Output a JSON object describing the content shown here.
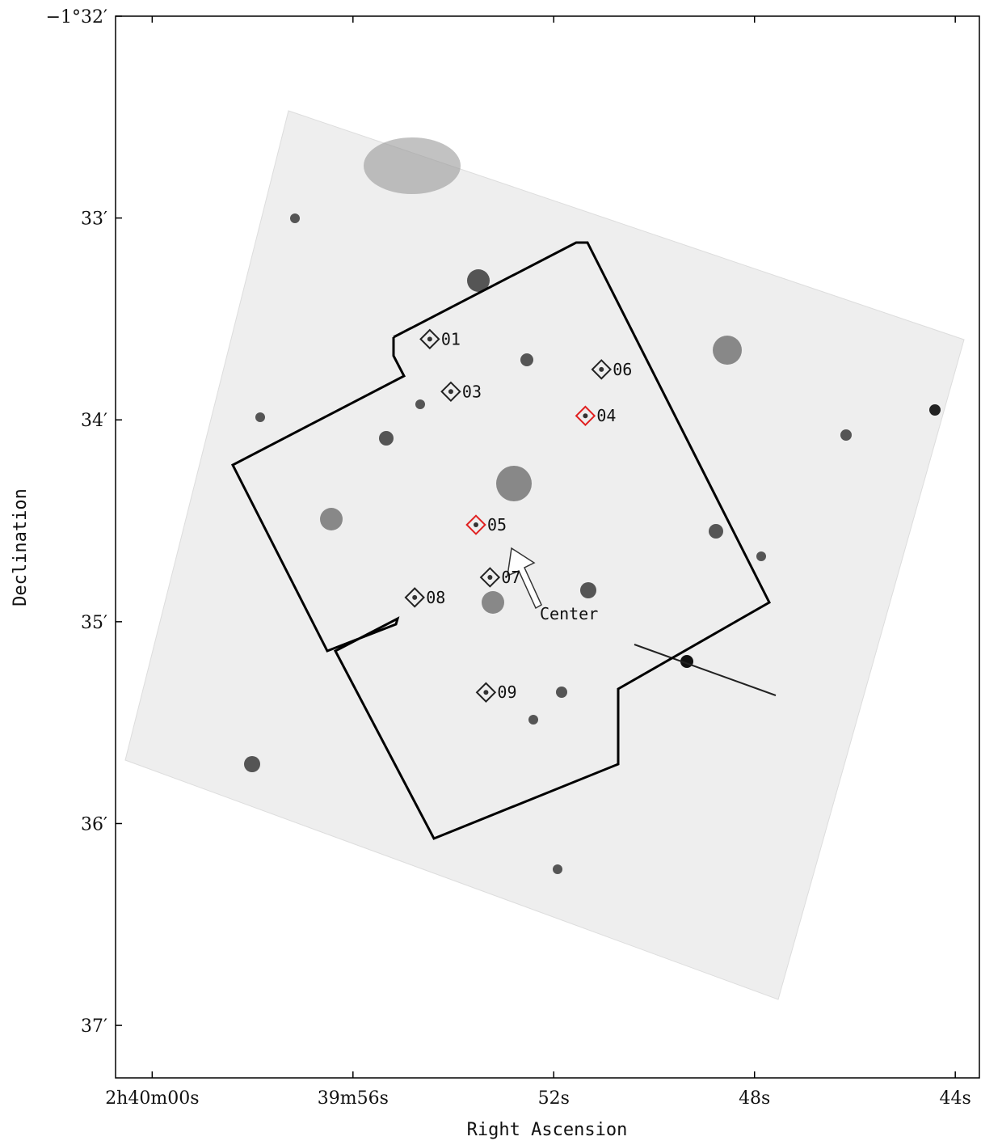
{
  "chart_data": {
    "type": "image",
    "xlabel": "Right Ascension",
    "ylabel": "Declination",
    "xlim": [
      9600.73,
      9583.52
    ],
    "ylim": [
      -97.26,
      -92
    ],
    "xticks": [
      {
        "value": 9600,
        "label": "2h40m00s"
      },
      {
        "value": 9596,
        "label": "39m56s"
      },
      {
        "value": 9592,
        "label": "52s"
      },
      {
        "value": 9588,
        "label": "48s"
      },
      {
        "value": 9584,
        "label": "44s"
      }
    ],
    "yticks": [
      {
        "value": -92,
        "label": "−1°32′"
      },
      {
        "value": -93,
        "label": "33′"
      },
      {
        "value": -94,
        "label": "34′"
      },
      {
        "value": -95,
        "label": "35′"
      },
      {
        "value": -96,
        "label": "36′"
      },
      {
        "value": -97,
        "label": "37′"
      }
    ],
    "markers": [
      {
        "label": "01",
        "ra": 9594.47,
        "dec": -93.6,
        "color": "#222222"
      },
      {
        "label": "03",
        "ra": 9594.05,
        "dec": -93.86,
        "color": "#222222"
      },
      {
        "label": "06",
        "ra": 9591.05,
        "dec": -93.75,
        "color": "#222222"
      },
      {
        "label": "04",
        "ra": 9591.37,
        "dec": -93.98,
        "color": "#e02020"
      },
      {
        "label": "05",
        "ra": 9593.55,
        "dec": -94.52,
        "color": "#e02020"
      },
      {
        "label": "07",
        "ra": 9593.27,
        "dec": -94.78,
        "color": "#222222"
      },
      {
        "label": "08",
        "ra": 9594.77,
        "dec": -94.88,
        "color": "#222222"
      },
      {
        "label": "09",
        "ra": 9593.35,
        "dec": -95.35,
        "color": "#222222"
      }
    ],
    "annotation": "Center"
  }
}
